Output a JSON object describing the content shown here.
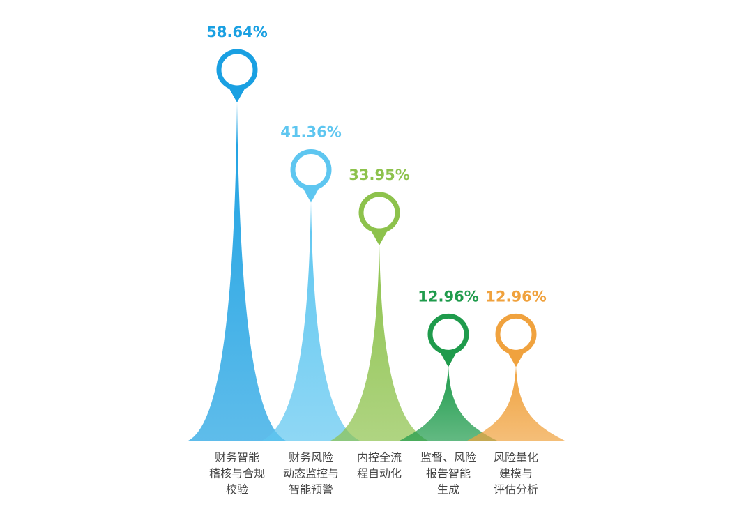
{
  "chart_data": {
    "type": "spike",
    "categories": [
      [
        "财务智能",
        "稽核与合规",
        "校验"
      ],
      [
        "财务风险",
        "动态监控与",
        "智能预警"
      ],
      [
        "内控全流",
        "程自动化"
      ],
      [
        "监督、风险",
        "报告智能",
        "生成"
      ],
      [
        "风险量化",
        "建模与",
        "评估分析"
      ]
    ],
    "values": [
      58.64,
      41.36,
      33.95,
      12.96,
      12.96
    ],
    "value_labels": [
      "58.64%",
      "41.36%",
      "33.95%",
      "12.96%",
      "12.96%"
    ],
    "colors": [
      "#1aa0e2",
      "#5ec6f0",
      "#8dc24c",
      "#1f9b4c",
      "#f0a23e"
    ]
  }
}
